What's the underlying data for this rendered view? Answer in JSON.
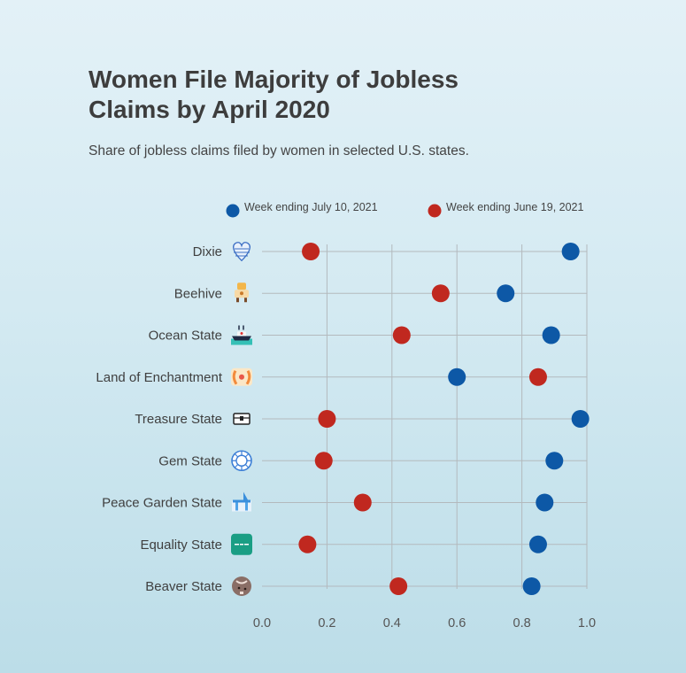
{
  "title": "Women File Majority of Jobless Claims by April 2020",
  "subtitle": "Share of jobless claims filed by women in selected U.S. states.",
  "colors": {
    "series_blue": "#0d58a6",
    "series_red": "#c0281f",
    "grid": "#b3b9bd"
  },
  "chart_data": {
    "type": "dot",
    "title": "Women File Majority of Jobless Claims by April 2020",
    "subtitle": "Share of jobless claims filed by women in selected U.S. states.",
    "categories": [
      "Dixie",
      "Beehive",
      "Ocean State",
      "Land of Enchantment",
      "Treasure State",
      "Gem State",
      "Peace Garden State",
      "Equality State",
      "Beaver State"
    ],
    "icons": [
      "heart-flag-icon",
      "beehive-icon",
      "ship-icon",
      "chili-peppers-icon",
      "treasure-chest-icon",
      "gem-icon",
      "peace-garden-icon",
      "equality-icon",
      "beaver-icon"
    ],
    "series": [
      {
        "name": "Week ending July 10, 2021",
        "color": "#0d58a6",
        "values": [
          0.95,
          0.75,
          0.89,
          0.6,
          0.98,
          0.9,
          0.87,
          0.85,
          0.83
        ]
      },
      {
        "name": "Week ending June 19, 2021",
        "color": "#c0281f",
        "values": [
          0.15,
          0.55,
          0.43,
          0.85,
          0.2,
          0.19,
          0.31,
          0.14,
          0.42
        ]
      }
    ],
    "xlim": [
      0,
      1.0
    ],
    "xticks": [
      "0.0",
      "0.2",
      "0.4",
      "0.6",
      "0.8",
      "1.0"
    ],
    "xlabel": "",
    "ylabel": "",
    "grid": true,
    "legend_position": "top"
  }
}
